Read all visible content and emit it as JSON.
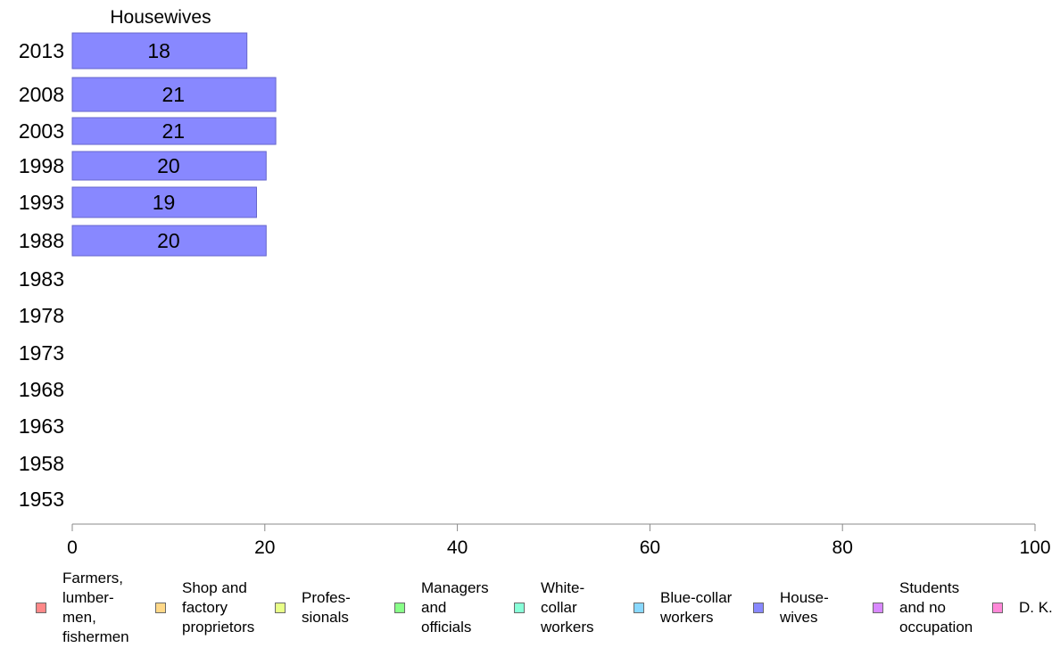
{
  "chart_data": {
    "type": "bar",
    "orientation": "horizontal",
    "title": "Housewives",
    "categories": [
      "2013",
      "2008",
      "2003",
      "1998",
      "1993",
      "1988",
      "1983",
      "1978",
      "1973",
      "1968",
      "1963",
      "1958",
      "1953"
    ],
    "series": [
      {
        "name": "House-\nwives",
        "color": "#8888ff",
        "values": [
          18,
          21,
          21,
          20,
          19,
          20,
          null,
          null,
          null,
          null,
          null,
          null,
          null
        ],
        "data_labels": [
          "18",
          "21",
          "21",
          "20",
          "19",
          "20",
          "",
          "",
          "",
          "",
          "",
          "",
          ""
        ]
      }
    ],
    "xlim": [
      0,
      100
    ],
    "xticks": [
      "0",
      "20",
      "40",
      "60",
      "80",
      "100"
    ],
    "xtick_values": [
      0,
      20,
      40,
      60,
      80,
      100
    ],
    "xlabel": "",
    "ylabel": "",
    "grid": false,
    "legend_position": "bottom"
  },
  "legend": {
    "items": [
      {
        "label": "Farmers,\nlumber-\nmen,\nfishermen",
        "color": "#ff8888"
      },
      {
        "label": "Shop and\nfactory\nproprietors",
        "color": "#ffd888"
      },
      {
        "label": "Profes-\nsionals",
        "color": "#e8ff88"
      },
      {
        "label": "Managers\nand\nofficials",
        "color": "#88ff88"
      },
      {
        "label": "White-\ncollar\nworkers",
        "color": "#88ffd8"
      },
      {
        "label": "Blue-collar\nworkers",
        "color": "#88d8ff"
      },
      {
        "label": "House-\nwives",
        "color": "#8888ff"
      },
      {
        "label": "Students\nand no\noccupation",
        "color": "#d888ff"
      },
      {
        "label": "D. K.",
        "color": "#ff88d8"
      }
    ]
  }
}
